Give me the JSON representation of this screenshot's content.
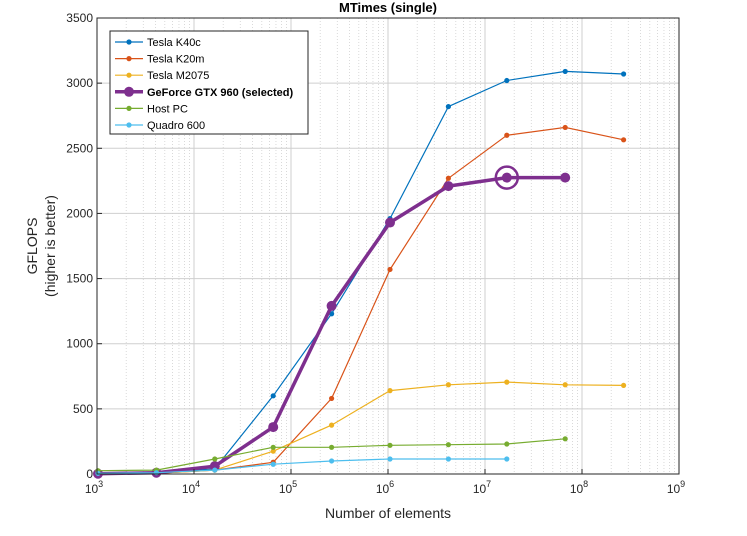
{
  "chart_data": {
    "type": "line",
    "title": "MTimes (single)",
    "xlabel": "Number of elements",
    "ylabel": "GFLOPS",
    "ylabel_sub": "(higher is better)",
    "x_scale": "log",
    "xlim": [
      1000,
      1000000000
    ],
    "ylim": [
      0,
      3500
    ],
    "y_ticks": [
      0,
      500,
      1000,
      1500,
      2000,
      2500,
      3000,
      3500
    ],
    "x_ticks": [
      {
        "value": 1000,
        "base": "10",
        "exp": "3"
      },
      {
        "value": 10000,
        "base": "10",
        "exp": "4"
      },
      {
        "value": 100000,
        "base": "10",
        "exp": "5"
      },
      {
        "value": 1000000,
        "base": "10",
        "exp": "6"
      },
      {
        "value": 10000000,
        "base": "10",
        "exp": "7"
      },
      {
        "value": 100000000,
        "base": "10",
        "exp": "8"
      },
      {
        "value": 1000000000,
        "base": "10",
        "exp": "9"
      }
    ],
    "grid": true,
    "legend_position": "top-left",
    "series": [
      {
        "name": "Tesla K40c",
        "color": "#0072BD",
        "bold": false,
        "x": [
          1024,
          4096,
          16384,
          65536,
          262144,
          1048576,
          4194304,
          16777216,
          67108864,
          268435456
        ],
        "y": [
          2,
          8,
          40,
          600,
          1230,
          1960,
          2820,
          3020,
          3090,
          3070
        ]
      },
      {
        "name": "Tesla K20m",
        "color": "#D95319",
        "bold": false,
        "x": [
          1024,
          4096,
          16384,
          65536,
          262144,
          1048576,
          4194304,
          16777216,
          67108864,
          268435456
        ],
        "y": [
          1,
          5,
          30,
          90,
          580,
          1570,
          2270,
          2600,
          2660,
          2565
        ]
      },
      {
        "name": "Tesla M2075",
        "color": "#EDB120",
        "bold": false,
        "x": [
          1024,
          4096,
          16384,
          65536,
          262144,
          1048576,
          4194304,
          16777216,
          67108864,
          268435456
        ],
        "y": [
          1,
          5,
          30,
          175,
          375,
          640,
          685,
          705,
          685,
          680
        ]
      },
      {
        "name": "GeForce GTX 960 (selected)",
        "color": "#7E2F8E",
        "bold": true,
        "x": [
          1024,
          4096,
          16384,
          65536,
          262144,
          1048576,
          4194304,
          16777216,
          67108864
        ],
        "y": [
          2,
          10,
          60,
          360,
          1290,
          1930,
          2210,
          2275,
          2275
        ]
      },
      {
        "name": "Host PC",
        "color": "#77AC30",
        "bold": false,
        "x": [
          1024,
          4096,
          16384,
          65536,
          262144,
          1048576,
          4194304,
          16777216,
          67108864
        ],
        "y": [
          25,
          30,
          115,
          205,
          205,
          220,
          225,
          230,
          270
        ]
      },
      {
        "name": "Quadro 600",
        "color": "#4DBEEE",
        "bold": false,
        "x": [
          1024,
          4096,
          16384,
          65536,
          262144,
          1048576,
          4194304,
          16777216
        ],
        "y": [
          5,
          10,
          30,
          75,
          100,
          115,
          115,
          115
        ]
      }
    ],
    "highlight": {
      "series": "GeForce GTX 960 (selected)",
      "x": 16777216,
      "y": 2275
    }
  }
}
